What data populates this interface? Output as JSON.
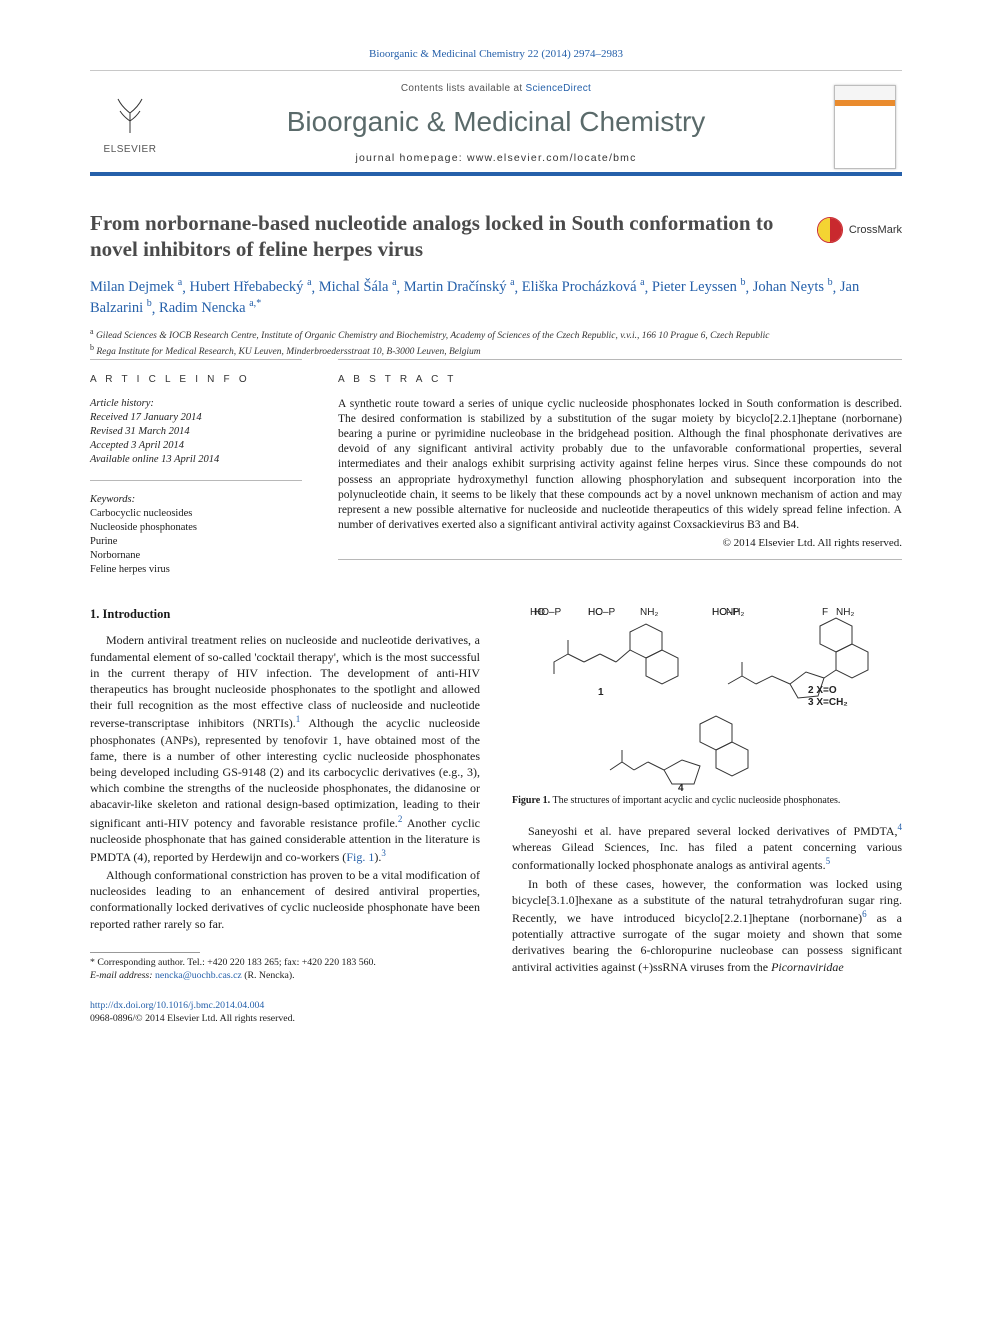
{
  "citation": "Bioorganic & Medicinal Chemistry 22 (2014) 2974–2983",
  "contents_prefix": "Contents lists available at ",
  "contents_link": "ScienceDirect",
  "journal_name": "Bioorganic & Medicinal Chemistry",
  "journal_home_prefix": "journal homepage: ",
  "journal_home_url": "www.elsevier.com/locate/bmc",
  "elsevier_label": "ELSEVIER",
  "crossmark_label": "CrossMark",
  "title": "From norbornane-based nucleotide analogs locked in South conformation to novel inhibitors of feline herpes virus",
  "authors_html": "Milan Dejmek|a|, Hubert Hřebabecký|a|, Michal Šála|a|, Martin Dračínský|a|, Eliška Procházková|a|, Pieter Leyssen|b|, Johan Neyts|b|, Jan Balzarini|b|, Radim Nencka|a,*|",
  "authors": [
    {
      "name": "Milan Dejmek",
      "sup": "a"
    },
    {
      "name": "Hubert Hřebabecký",
      "sup": "a"
    },
    {
      "name": "Michal Šála",
      "sup": "a"
    },
    {
      "name": "Martin Dračínský",
      "sup": "a"
    },
    {
      "name": "Eliška Procházková",
      "sup": "a"
    },
    {
      "name": "Pieter Leyssen",
      "sup": "b"
    },
    {
      "name": "Johan Neyts",
      "sup": "b"
    },
    {
      "name": "Jan Balzarini",
      "sup": "b"
    },
    {
      "name": "Radim Nencka",
      "sup": "a,",
      "star": true
    }
  ],
  "affiliations": [
    {
      "sup": "a",
      "text": "Gilead Sciences & IOCB Research Centre, Institute of Organic Chemistry and Biochemistry, Academy of Sciences of the Czech Republic, v.v.i., 166 10 Prague 6, Czech Republic"
    },
    {
      "sup": "b",
      "text": "Rega Institute for Medical Research, KU Leuven, Minderbroedersstraat 10, B-3000 Leuven, Belgium"
    }
  ],
  "article_info_head": "A R T I C L E   I N F O",
  "abstract_head": "A B S T R A C T",
  "history": {
    "label": "Article history:",
    "received": "Received 17 January 2014",
    "revised": "Revised 31 March 2014",
    "accepted": "Accepted 3 April 2014",
    "online": "Available online 13 April 2014"
  },
  "keywords_label": "Keywords:",
  "keywords": [
    "Carbocyclic nucleosides",
    "Nucleoside phosphonates",
    "Purine",
    "Norbornane",
    "Feline herpes virus"
  ],
  "abstract": "A synthetic route toward a series of unique cyclic nucleoside phosphonates locked in South conformation is described. The desired conformation is stabilized by a substitution of the sugar moiety by bicyclo[2.2.1]heptane (norbornane) bearing a purine or pyrimidine nucleobase in the bridgehead position. Although the final phosphonate derivatives are devoid of any significant antiviral activity probably due to the unfavorable conformational properties, several intermediates and their analogs exhibit surprising activity against feline herpes virus. Since these compounds do not possess an appropriate hydroxymethyl function allowing phosphorylation and subsequent incorporation into the polynucleotide chain, it seems to be likely that these compounds act by a novel unknown mechanism of action and may represent a new possible alternative for nucleoside and nucleotide therapeutics of this widely spread feline infection. A number of derivatives exerted also a significant antiviral activity against Coxsackievirus B3 and B4.",
  "copyright": "© 2014 Elsevier Ltd. All rights reserved.",
  "intro_head": "1. Introduction",
  "intro_p1": "Modern antiviral treatment relies on nucleoside and nucleotide derivatives, a fundamental element of so-called 'cocktail therapy', which is the most successful in the current therapy of HIV infection. The development of anti-HIV therapeutics has brought nucleoside phosphonates to the spotlight and allowed their full recognition as the most effective class of nucleoside and nucleotide reverse-transcriptase inhibitors (NRTIs).",
  "intro_p1b": " Although the acyclic nucleoside phosphonates (ANPs), represented by tenofovir 1, have obtained most of the fame, there is a number of other interesting cyclic nucleoside phosphonates being developed including GS-9148 (2) and its carbocyclic derivatives (e.g., 3), which combine the strengths of the nucleoside phosphonates, the didanosine or abacavir-like skeleton and rational design-based optimization, leading to their significant anti-HIV potency and favorable resistance profile.",
  "intro_p1c": " Another cyclic nucleoside phosphonate that has gained considerable attention in the literature is PMDTA (4), reported by Herdewijn and co-workers (",
  "fig1_ref": "Fig. 1",
  "intro_p1d": ").",
  "intro_p2": "Although conformational constriction has proven to be a vital modification of nucleosides leading to an enhancement of desired antiviral properties, conformationally locked derivatives of cyclic nucleoside phosphonate have been reported rather rarely so far.",
  "col2_p1a": "Saneyoshi et al. have prepared several locked derivatives of PMDTA,",
  "col2_p1b": " whereas Gilead Sciences, Inc. has filed a patent concerning various conformationally locked phosphonate analogs as antiviral agents.",
  "col2_p2": "In both of these cases, however, the conformation was locked using bicycle[3.1.0]hexane as a substitute of the natural tetrahydrofuran sugar ring. Recently, we have introduced bicyclo[2.2.1]heptane (norbornane)",
  "col2_p2b": " as a potentially attractive surrogate of the sugar moiety and shown that some derivatives bearing the 6-chloropurine nucleobase can possess significant antiviral activities against (+)ssRNA viruses from the ",
  "col2_p2c": "Picornaviridae",
  "fig1_caption_b": "Figure 1.",
  "fig1_caption": " The structures of important acyclic and cyclic nucleoside phosphonates.",
  "fig_labels": {
    "l1": "1",
    "l2": "2  X=O",
    "l3": "3  X=CH₂",
    "l4": "4"
  },
  "fig_atom_labels": {
    "nh2": "NH₂",
    "n": "N",
    "hopo": "HO–P",
    "ho": "HO",
    "o": "O",
    "f": "F"
  },
  "footnote_corr": "Corresponding author. Tel.: +420 220 183 265; fax: +420 220 183 560.",
  "footnote_email_lab": "E-mail address:",
  "footnote_email": "nencka@uochb.cas.cz",
  "footnote_email_tail": " (R. Nencka).",
  "doi_url": "http://dx.doi.org/10.1016/j.bmc.2014.04.004",
  "doi_line2": "0968-0896/© 2014 Elsevier Ltd. All rights reserved.",
  "colors": {
    "link": "#2560aa",
    "rule": "#b8b8b8",
    "orange": "#e98b2e",
    "header_bar": "#2560aa",
    "text": "#1a1a1a"
  },
  "ref_nums": {
    "r1": "1",
    "r2": "2",
    "r3": "3",
    "r4": "4",
    "r5": "5",
    "r6": "6"
  }
}
